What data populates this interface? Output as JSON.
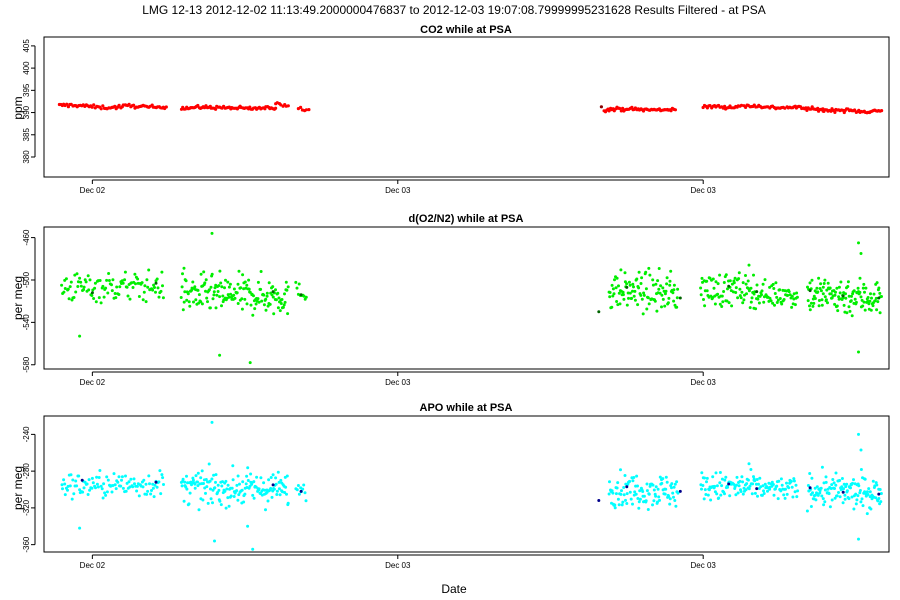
{
  "figure": {
    "title": "LMG   12-13    2012-12-02 11:13:49.2000000476837 to 2012-12-03 19:07:08.79999995231628   Results Filtered - at PSA",
    "xlabel": "Date"
  },
  "chart_data": [
    {
      "type": "scatter",
      "title": "CO2 while at PSA",
      "ylabel": "ppm",
      "xlabel": "",
      "x_unit": "hours since 2012-12-02 00:00",
      "xlim": [
        10.1,
        43.3
      ],
      "ylim": [
        375.5,
        407
      ],
      "y_ticks": [
        380,
        385,
        390,
        395,
        400,
        405
      ],
      "x_ticks": [
        {
          "x": 12,
          "label": "Dec 02"
        },
        {
          "x": 24,
          "label": "Dec 03"
        },
        {
          "x": 36,
          "label": "Dec 03"
        }
      ],
      "color": "#ff0000",
      "highlight_color": "#8b0000",
      "segments": [
        {
          "x0": 10.7,
          "x1": 13.0,
          "y0": 391.6,
          "y1": 391.2,
          "n": 40,
          "noise": 0.2
        },
        {
          "x0": 13.0,
          "x1": 14.9,
          "y0": 391.3,
          "y1": 391.4,
          "n": 35,
          "noise": 0.2
        },
        {
          "x0": 15.5,
          "x1": 19.2,
          "y0": 391.0,
          "y1": 391.1,
          "n": 70,
          "noise": 0.2
        },
        {
          "x0": 19.2,
          "x1": 19.7,
          "y0": 392.1,
          "y1": 391.6,
          "n": 8,
          "noise": 0.2
        },
        {
          "x0": 20.1,
          "x1": 20.5,
          "y0": 390.8,
          "y1": 390.8,
          "n": 6,
          "noise": 0.15
        },
        {
          "x0": 32.1,
          "x1": 34.9,
          "y0": 390.6,
          "y1": 390.8,
          "n": 55,
          "noise": 0.2
        },
        {
          "x0": 36.0,
          "x1": 37.5,
          "y0": 391.1,
          "y1": 391.5,
          "n": 28,
          "noise": 0.2
        },
        {
          "x0": 37.6,
          "x1": 39.2,
          "y0": 391.4,
          "y1": 391.2,
          "n": 28,
          "noise": 0.2
        },
        {
          "x0": 39.3,
          "x1": 40.7,
          "y0": 391.1,
          "y1": 390.8,
          "n": 28,
          "noise": 0.2
        },
        {
          "x0": 40.7,
          "x1": 43.0,
          "y0": 390.4,
          "y1": 390.4,
          "n": 45,
          "noise": 0.2
        }
      ],
      "outliers": [
        {
          "x": 32.0,
          "y": 391.3,
          "dark": true
        }
      ]
    },
    {
      "type": "scatter",
      "title": "d(O2/N2) while at PSA",
      "ylabel": "per meg",
      "xlabel": "",
      "x_unit": "hours since 2012-12-02 00:00",
      "xlim": [
        10.1,
        43.3
      ],
      "ylim": [
        -584,
        -450
      ],
      "y_ticks": [
        -460,
        -500,
        -540,
        -580
      ],
      "x_ticks": [
        {
          "x": 12,
          "label": "Dec 02"
        },
        {
          "x": 24,
          "label": "Dec 03"
        },
        {
          "x": 36,
          "label": "Dec 03"
        }
      ],
      "color": "#00ee00",
      "highlight_color": "#006400",
      "segments": [
        {
          "x0": 10.8,
          "x1": 14.8,
          "y0": -507,
          "y1": -506,
          "n": 110,
          "noise": 7
        },
        {
          "x0": 15.5,
          "x1": 19.7,
          "y0": -513,
          "y1": -515,
          "n": 170,
          "noise": 9
        },
        {
          "x0": 20.0,
          "x1": 20.4,
          "y0": -512,
          "y1": -512,
          "n": 10,
          "noise": 5
        },
        {
          "x0": 32.3,
          "x1": 35.0,
          "y0": -510,
          "y1": -512,
          "n": 110,
          "noise": 9
        },
        {
          "x0": 35.9,
          "x1": 38.0,
          "y0": -509,
          "y1": -510,
          "n": 80,
          "noise": 8
        },
        {
          "x0": 38.0,
          "x1": 39.7,
          "y0": -513,
          "y1": -514,
          "n": 60,
          "noise": 6
        },
        {
          "x0": 40.1,
          "x1": 43.0,
          "y0": -513,
          "y1": -517,
          "n": 130,
          "noise": 9
        }
      ],
      "outliers": [
        {
          "x": 11.5,
          "y": -553
        },
        {
          "x": 16.7,
          "y": -456
        },
        {
          "x": 17.0,
          "y": -571
        },
        {
          "x": 18.2,
          "y": -578
        },
        {
          "x": 15.6,
          "y": -489
        },
        {
          "x": 31.9,
          "y": -530,
          "dark": true
        },
        {
          "x": 37.8,
          "y": -486
        },
        {
          "x": 42.1,
          "y": -465
        },
        {
          "x": 42.2,
          "y": -475
        },
        {
          "x": 42.1,
          "y": -568
        },
        {
          "x": 12.0,
          "y": -512,
          "dark": true
        },
        {
          "x": 14.5,
          "y": -503,
          "dark": true
        },
        {
          "x": 19.1,
          "y": -511,
          "dark": true
        },
        {
          "x": 20.2,
          "y": -514,
          "dark": true
        },
        {
          "x": 33.0,
          "y": -507,
          "dark": true
        },
        {
          "x": 35.1,
          "y": -517,
          "dark": true
        },
        {
          "x": 37.0,
          "y": -506,
          "dark": true
        },
        {
          "x": 38.1,
          "y": -511,
          "dark": true
        },
        {
          "x": 40.2,
          "y": -510,
          "dark": true
        },
        {
          "x": 41.5,
          "y": -515,
          "dark": true
        },
        {
          "x": 42.9,
          "y": -517,
          "dark": true
        }
      ]
    },
    {
      "type": "scatter",
      "title": "APO while at PSA",
      "ylabel": "per meg",
      "xlabel": "Date",
      "x_unit": "hours since 2012-12-02 00:00",
      "xlim": [
        10.1,
        43.3
      ],
      "ylim": [
        -368,
        -220
      ],
      "y_ticks": [
        -240,
        -280,
        -320,
        -360
      ],
      "x_ticks": [
        {
          "x": 12,
          "label": "Dec 02"
        },
        {
          "x": 24,
          "label": "Dec 03"
        },
        {
          "x": 36,
          "label": "Dec 03"
        }
      ],
      "color": "#00ffff",
      "highlight_color": "#00008b",
      "segments": [
        {
          "x0": 10.8,
          "x1": 14.8,
          "y0": -296,
          "y1": -294,
          "n": 110,
          "noise": 7
        },
        {
          "x0": 15.5,
          "x1": 19.7,
          "y0": -298,
          "y1": -300,
          "n": 170,
          "noise": 9
        },
        {
          "x0": 20.0,
          "x1": 20.4,
          "y0": -300,
          "y1": -300,
          "n": 10,
          "noise": 5
        },
        {
          "x0": 32.3,
          "x1": 35.0,
          "y0": -300,
          "y1": -301,
          "n": 110,
          "noise": 9
        },
        {
          "x0": 35.9,
          "x1": 38.0,
          "y0": -297,
          "y1": -298,
          "n": 80,
          "noise": 8
        },
        {
          "x0": 38.0,
          "x1": 39.7,
          "y0": -298,
          "y1": -300,
          "n": 60,
          "noise": 6
        },
        {
          "x0": 40.1,
          "x1": 43.0,
          "y0": -300,
          "y1": -305,
          "n": 130,
          "noise": 9
        }
      ],
      "outliers": [
        {
          "x": 11.5,
          "y": -342
        },
        {
          "x": 16.7,
          "y": -227
        },
        {
          "x": 16.8,
          "y": -356
        },
        {
          "x": 18.3,
          "y": -365
        },
        {
          "x": 18.1,
          "y": -340
        },
        {
          "x": 31.9,
          "y": -312,
          "dark": true
        },
        {
          "x": 37.8,
          "y": -272
        },
        {
          "x": 42.1,
          "y": -240
        },
        {
          "x": 42.2,
          "y": -257
        },
        {
          "x": 42.1,
          "y": -354
        },
        {
          "x": 11.6,
          "y": -290,
          "dark": true
        },
        {
          "x": 14.5,
          "y": -292,
          "dark": true
        },
        {
          "x": 19.1,
          "y": -295,
          "dark": true
        },
        {
          "x": 20.2,
          "y": -302,
          "dark": true
        },
        {
          "x": 33.0,
          "y": -297,
          "dark": true
        },
        {
          "x": 35.1,
          "y": -302,
          "dark": true
        },
        {
          "x": 37.0,
          "y": -294,
          "dark": true
        },
        {
          "x": 38.1,
          "y": -299,
          "dark": true
        },
        {
          "x": 40.2,
          "y": -298,
          "dark": true
        },
        {
          "x": 41.5,
          "y": -303,
          "dark": true
        },
        {
          "x": 42.9,
          "y": -305,
          "dark": true
        }
      ]
    }
  ]
}
